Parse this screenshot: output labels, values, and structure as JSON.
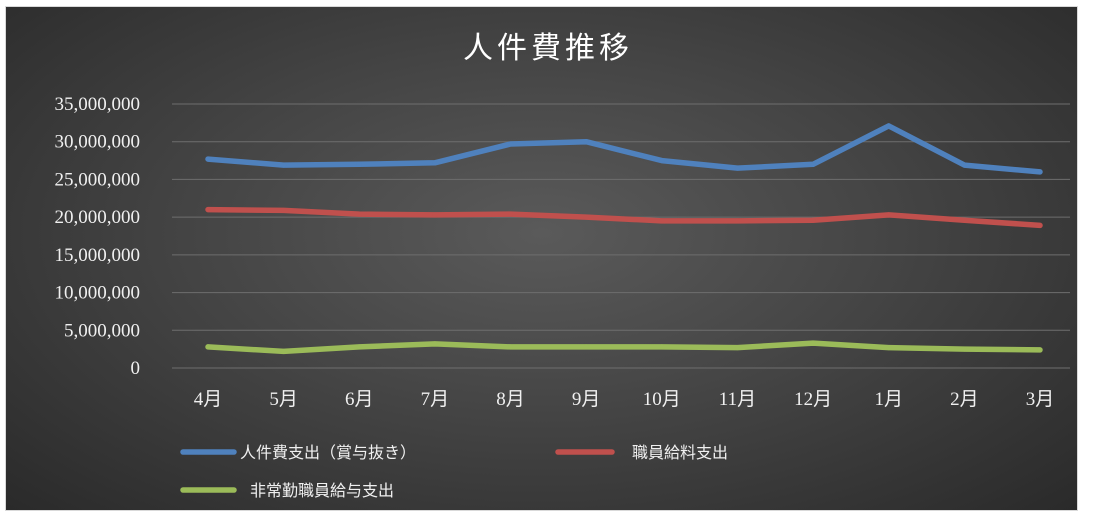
{
  "chart_data": {
    "type": "line",
    "title": "人件費推移",
    "categories": [
      "4月",
      "5月",
      "6月",
      "7月",
      "8月",
      "9月",
      "10月",
      "11月",
      "12月",
      "1月",
      "2月",
      "3月"
    ],
    "ylim": [
      0,
      35000000
    ],
    "yticks": [
      "0",
      "5,000,000",
      "10,000,000",
      "15,000,000",
      "20,000,000",
      "25,000,000",
      "30,000,000",
      "35,000,000"
    ],
    "grid": true,
    "legend_position": "bottom-left",
    "series": [
      {
        "name": "人件費支出（賞与抜き）",
        "color": "#4f81bd",
        "values": [
          27700000,
          26900000,
          27000000,
          27200000,
          29700000,
          30000000,
          27500000,
          26500000,
          27000000,
          32100000,
          26900000,
          26000000
        ]
      },
      {
        "name": "職員給料支出",
        "color": "#c0504d",
        "values": [
          21000000,
          20900000,
          20400000,
          20300000,
          20400000,
          20000000,
          19500000,
          19500000,
          19600000,
          20300000,
          19600000,
          18900000
        ]
      },
      {
        "name": "非常勤職員給与支出",
        "color": "#9bbb59",
        "values": [
          2800000,
          2200000,
          2800000,
          3200000,
          2800000,
          2800000,
          2800000,
          2700000,
          3300000,
          2700000,
          2500000,
          2400000
        ]
      }
    ]
  }
}
